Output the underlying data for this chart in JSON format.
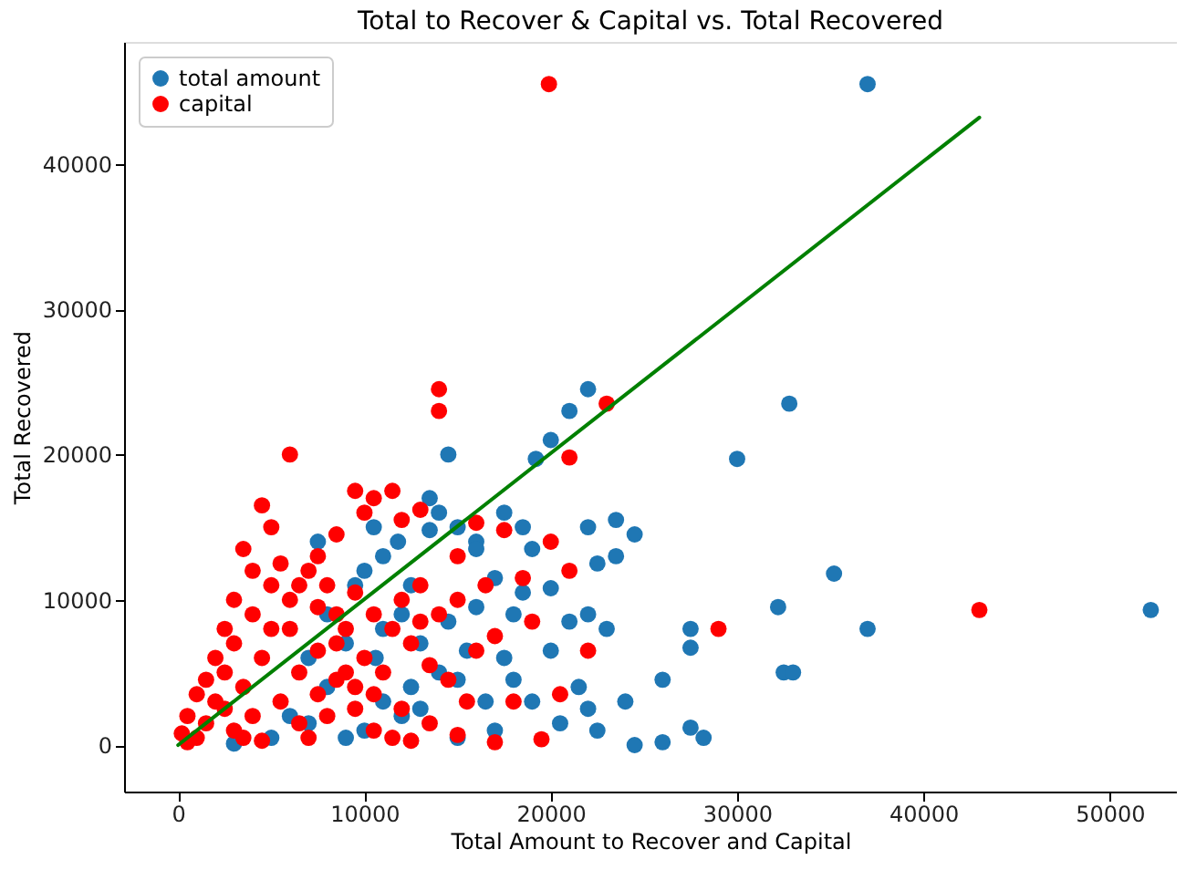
{
  "chart_data": {
    "type": "scatter",
    "title": "Total to Recover & Capital vs. Total Recovered",
    "xlabel": "Total Amount to Recover and Capital",
    "ylabel": "Total Recovered",
    "xlim": [
      -2900,
      53600
    ],
    "ylim": [
      -3200,
      48400
    ],
    "xticks": [
      0,
      10000,
      20000,
      30000,
      40000,
      50000
    ],
    "yticks": [
      0,
      10000,
      20000,
      30000,
      40000
    ],
    "grid": false,
    "legend": "top left",
    "marker": "circle",
    "series": [
      {
        "name": "total amount",
        "color": "#1f77b4",
        "x": [
          37000,
          52200,
          32800,
          30000,
          22000,
          21000,
          20000,
          19200,
          23500,
          24500,
          22000,
          35200,
          32200,
          37000,
          27500,
          27500,
          26000,
          32500,
          33000,
          24500,
          26000,
          27500,
          28200,
          22000,
          22500,
          18500,
          17500,
          16000,
          15000,
          14000,
          13500,
          14500,
          12500,
          12000,
          10000,
          11000,
          13000,
          14000,
          15000,
          16500,
          17500,
          18000,
          19000,
          21000,
          22000,
          20000,
          19000,
          20500,
          17000,
          15000,
          12000,
          10000,
          9000,
          8000,
          9000,
          10600,
          11000,
          13000,
          12500,
          14500,
          16000,
          17000,
          18500,
          20000,
          22500,
          23500,
          8000,
          7500,
          10500,
          9500,
          6000,
          7000,
          5000,
          3000,
          16000,
          13500,
          11800,
          15500,
          18000,
          21500,
          23000,
          24000,
          7000,
          11000
        ],
        "values": [
          45500,
          9300,
          23500,
          19700,
          24500,
          23000,
          21000,
          19700,
          15500,
          14500,
          15000,
          11800,
          9500,
          8000,
          8000,
          6700,
          4500,
          5000,
          5000,
          0,
          200,
          1200,
          500,
          2500,
          1000,
          15000,
          16000,
          14000,
          15000,
          16000,
          17000,
          20000,
          11000,
          9000,
          12000,
          8000,
          7000,
          5000,
          4500,
          3000,
          6000,
          9000,
          13500,
          8500,
          9000,
          6500,
          3000,
          1500,
          1000,
          500,
          2000,
          1000,
          500,
          4000,
          7000,
          6000,
          3000,
          2500,
          4000,
          8500,
          9500,
          11500,
          10500,
          10800,
          12500,
          13000,
          9000,
          14000,
          15000,
          11000,
          2000,
          1500,
          500,
          100,
          13500,
          14800,
          14000,
          6500,
          4500,
          4000,
          8000,
          3000,
          6000,
          13000
        ]
      },
      {
        "name": "capital",
        "color": "#ff0000",
        "x": [
          19900,
          43000,
          29000,
          23000,
          14000,
          14000,
          6000,
          9500,
          10500,
          11500,
          10000,
          8500,
          12000,
          13000,
          4500,
          3500,
          5000,
          7500,
          21000,
          16000,
          15000,
          17500,
          16500,
          18500,
          20000,
          21000,
          19000,
          22000,
          20500,
          18000,
          17000,
          19500,
          15000,
          13500,
          12000,
          10500,
          9000,
          8000,
          7000,
          6000,
          5000,
          4000,
          3000,
          2500,
          2000,
          1500,
          1000,
          500,
          500,
          1000,
          2000,
          3000,
          4000,
          5500,
          6500,
          7500,
          8500,
          9500,
          10500,
          11500,
          12500,
          13500,
          14500,
          15500,
          2500,
          3500,
          4500,
          5500,
          6500,
          7500,
          8500,
          9500,
          10500,
          11500,
          12500,
          3000,
          4000,
          5000,
          6000,
          7000,
          8000,
          9000,
          10000,
          11000,
          16000,
          14000,
          13000,
          12000,
          1500,
          2500,
          200,
          3500,
          4500,
          6500,
          7500,
          8500,
          9500,
          13000,
          15000,
          17000
        ],
        "values": [
          45500,
          9300,
          8000,
          23500,
          24500,
          23000,
          20000,
          17500,
          17000,
          17500,
          16000,
          14500,
          15500,
          16200,
          16500,
          13500,
          15000,
          13000,
          19800,
          15300,
          13000,
          14800,
          11000,
          11500,
          14000,
          12000,
          8500,
          6500,
          3500,
          3000,
          200,
          400,
          700,
          1500,
          2500,
          3500,
          5000,
          2000,
          500,
          8000,
          11000,
          9000,
          7000,
          5000,
          3000,
          1500,
          500,
          2000,
          200,
          3500,
          6000,
          10000,
          12000,
          12500,
          11000,
          9500,
          9000,
          10500,
          9000,
          8000,
          7000,
          5500,
          4500,
          3000,
          8000,
          4000,
          6000,
          3000,
          5000,
          6500,
          7000,
          4000,
          1000,
          500,
          300,
          1000,
          2000,
          8000,
          10000,
          12000,
          11000,
          8000,
          6000,
          5000,
          6500,
          9000,
          11000,
          10000,
          4500,
          2500,
          800,
          500,
          300,
          1500,
          3500,
          4500,
          2500,
          8500,
          10000,
          7500
        ]
      },
      {
        "type": "line",
        "color": "#008000",
        "line_style": "solid",
        "marker": "none",
        "x": [
          0,
          43000
        ],
        "values": [
          0,
          43200
        ]
      }
    ]
  }
}
